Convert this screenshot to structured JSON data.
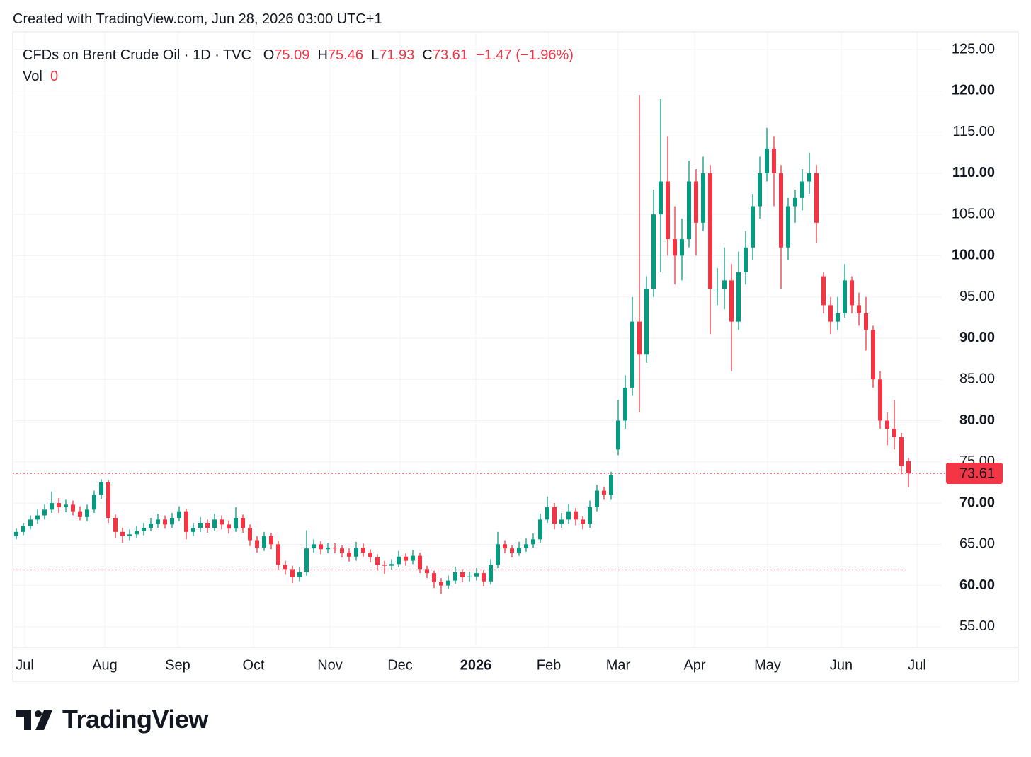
{
  "header": {
    "created": "Created with TradingView.com, Jun 28, 2026 03:00 UTC+1"
  },
  "footer": {
    "brand": "TradingView"
  },
  "chart_data": {
    "type": "candlestick",
    "legend": {
      "symbol": "CFDs on Brent Crude Oil · 1D · TVC",
      "open_label": "O",
      "high_label": "H",
      "low_label": "L",
      "close_label": "C",
      "change": "−1.47",
      "change_pct": "(−1.96%)",
      "volume_label": "Vol",
      "volume": 0
    },
    "up_color": "#089981",
    "down_color": "#f23645",
    "xlim": [
      0,
      131.2
    ],
    "xticks": [
      {
        "value": 1.7,
        "label": "Jul"
      },
      {
        "value": 13,
        "label": "Aug"
      },
      {
        "value": 23.3,
        "label": "Sep"
      },
      {
        "value": 34,
        "label": "Oct"
      },
      {
        "value": 44.8,
        "label": "Nov"
      },
      {
        "value": 54.7,
        "label": "Dec"
      },
      {
        "value": 65.4,
        "label": "2026"
      },
      {
        "value": 75.7,
        "label": "Feb"
      },
      {
        "value": 85.5,
        "label": "Mar"
      },
      {
        "value": 96.3,
        "label": "Apr"
      },
      {
        "value": 106.6,
        "label": "May"
      },
      {
        "value": 117,
        "label": "Jun"
      },
      {
        "value": 127.7,
        "label": "Jul"
      }
    ],
    "ylim": [
      52.5,
      127.15
    ],
    "yticks": [
      {
        "value": 55,
        "label": "55.00"
      },
      {
        "value": 60,
        "label": "60.00"
      },
      {
        "value": 65,
        "label": "65.00"
      },
      {
        "value": 70,
        "label": "70.00"
      },
      {
        "value": 75,
        "label": "75.00"
      },
      {
        "value": 80,
        "label": "80.00"
      },
      {
        "value": 85,
        "label": "85.00"
      },
      {
        "value": 90,
        "label": "90.00"
      },
      {
        "value": 95,
        "label": "95.00"
      },
      {
        "value": 100,
        "label": "100.00"
      },
      {
        "value": 105,
        "label": "105.00"
      },
      {
        "value": 110,
        "label": "110.00"
      },
      {
        "value": 115,
        "label": "115.00"
      },
      {
        "value": 120,
        "label": "120.00"
      },
      {
        "value": 125,
        "label": "125.00"
      }
    ],
    "grid": true,
    "reference_level": 61.9,
    "ohlc": [
      [
        66,
        66.9,
        65.6,
        66.5
      ],
      [
        66.5,
        67.6,
        66.1,
        67.2
      ],
      [
        67.2,
        68.5,
        66.8,
        68
      ],
      [
        68,
        69.2,
        67.5,
        68.5
      ],
      [
        68.5,
        69.8,
        68,
        69.2
      ],
      [
        69.2,
        71.4,
        68.8,
        70
      ],
      [
        70,
        70.6,
        68.8,
        69.5
      ],
      [
        69.5,
        70.4,
        68.9,
        69.8
      ],
      [
        69.8,
        70.3,
        68.5,
        69
      ],
      [
        69,
        69.6,
        67.9,
        68.3
      ],
      [
        68.3,
        69.8,
        67.8,
        69.2
      ],
      [
        69.2,
        71.5,
        68.8,
        71
      ],
      [
        71,
        72.9,
        70.5,
        72.5
      ],
      [
        72.5,
        72.8,
        67.6,
        68.2
      ],
      [
        68.2,
        68.6,
        65.8,
        66.5
      ],
      [
        66.5,
        67,
        65.2,
        66
      ],
      [
        66,
        66.8,
        65.5,
        66.2
      ],
      [
        66.2,
        67.2,
        65.8,
        66.6
      ],
      [
        66.6,
        67.6,
        66.1,
        67
      ],
      [
        67,
        68.2,
        66.6,
        67.5
      ],
      [
        67.5,
        68.7,
        67,
        68
      ],
      [
        68,
        68.5,
        66.9,
        67.4
      ],
      [
        67.4,
        68.8,
        67,
        68.2
      ],
      [
        68.2,
        69.6,
        67.8,
        69
      ],
      [
        69,
        69.3,
        65.6,
        66.5
      ],
      [
        66.5,
        67.6,
        66,
        67
      ],
      [
        67,
        68.3,
        66.5,
        67.6
      ],
      [
        67.6,
        68,
        66.4,
        67
      ],
      [
        67,
        68.7,
        66.6,
        68
      ],
      [
        68,
        68.5,
        66.8,
        67.4
      ],
      [
        67.4,
        67.9,
        66.3,
        66.9
      ],
      [
        66.9,
        69.5,
        66.5,
        68.2
      ],
      [
        68.2,
        68.6,
        66.4,
        67
      ],
      [
        67,
        67.4,
        64.8,
        65.5
      ],
      [
        65.5,
        66,
        64,
        64.6
      ],
      [
        64.6,
        66.5,
        64.2,
        66
      ],
      [
        66,
        66.4,
        64.4,
        65
      ],
      [
        65,
        65.4,
        61.9,
        62.5
      ],
      [
        62.5,
        63,
        61.3,
        62
      ],
      [
        62,
        62.4,
        60.3,
        61
      ],
      [
        61,
        62.2,
        60.5,
        61.6
      ],
      [
        61.6,
        66.7,
        61.2,
        64.5
      ],
      [
        64.5,
        65.6,
        64,
        65
      ],
      [
        65,
        65.4,
        63.8,
        64.4
      ],
      [
        64.4,
        65.2,
        63.9,
        64.6
      ],
      [
        64.6,
        65.2,
        63.9,
        64.5
      ],
      [
        64.5,
        64.9,
        63.4,
        64
      ],
      [
        64,
        64.5,
        62.9,
        63.5
      ],
      [
        63.5,
        65.3,
        63,
        64.6
      ],
      [
        64.6,
        65.1,
        63.5,
        64
      ],
      [
        64,
        64.4,
        62.8,
        63.4
      ],
      [
        63.4,
        63.8,
        61.8,
        62.5
      ],
      [
        62.5,
        63,
        61.4,
        62.4
      ],
      [
        62.4,
        63.2,
        61.9,
        62.6
      ],
      [
        62.6,
        64.2,
        62.2,
        63.5
      ],
      [
        63.5,
        63.9,
        62.4,
        63
      ],
      [
        63,
        64.3,
        62.6,
        63.6
      ],
      [
        63.6,
        64,
        61.5,
        62
      ],
      [
        62,
        62.4,
        60.9,
        61.5
      ],
      [
        61.5,
        61.8,
        59.7,
        60.4
      ],
      [
        60.4,
        60.9,
        59,
        60
      ],
      [
        60,
        61.2,
        59.6,
        60.6
      ],
      [
        60.6,
        62.3,
        60.2,
        61.6
      ],
      [
        61.6,
        62,
        60.4,
        61
      ],
      [
        61,
        61.7,
        60.5,
        61.1
      ],
      [
        61.1,
        62.1,
        60.6,
        61.5
      ],
      [
        61.5,
        61.9,
        59.9,
        60.5
      ],
      [
        60.5,
        63.2,
        60.1,
        62.5
      ],
      [
        62.5,
        66.5,
        62.1,
        65
      ],
      [
        65,
        65.5,
        63.9,
        64.5
      ],
      [
        64.5,
        64.9,
        63.4,
        64
      ],
      [
        64,
        65.3,
        63.6,
        64.6
      ],
      [
        64.6,
        65.7,
        64.1,
        65
      ],
      [
        65,
        66.3,
        64.6,
        65.6
      ],
      [
        65.6,
        68.7,
        65.2,
        68
      ],
      [
        68,
        70.8,
        67.6,
        69.5
      ],
      [
        69.5,
        70,
        66.8,
        67.5
      ],
      [
        67.5,
        68.8,
        67,
        68
      ],
      [
        68,
        69.9,
        67.5,
        69
      ],
      [
        69,
        69.4,
        67.3,
        68
      ],
      [
        68,
        68.4,
        66.8,
        67.5
      ],
      [
        67.5,
        70.3,
        67,
        69.5
      ],
      [
        69.5,
        72.2,
        69,
        71.5
      ],
      [
        71.5,
        72,
        70.4,
        71
      ],
      [
        71,
        73.8,
        70.4,
        73.4
      ],
      [
        76.5,
        82.5,
        75.8,
        80
      ],
      [
        80,
        85.5,
        79,
        84
      ],
      [
        84,
        95,
        83,
        92
      ],
      [
        92,
        119.5,
        81,
        88
      ],
      [
        88,
        97.5,
        87,
        96
      ],
      [
        96,
        108,
        95,
        105
      ],
      [
        105,
        119,
        98,
        109
      ],
      [
        109,
        114.5,
        100,
        102
      ],
      [
        102,
        106,
        96.5,
        100
      ],
      [
        100,
        104.5,
        97,
        102
      ],
      [
        102,
        111.5,
        101,
        109
      ],
      [
        109,
        110.5,
        100,
        104
      ],
      [
        104,
        112,
        103,
        110
      ],
      [
        110,
        111,
        90.5,
        96
      ],
      [
        96,
        98.5,
        94,
        96
      ],
      [
        96,
        101,
        93.5,
        97
      ],
      [
        97,
        99,
        86,
        92
      ],
      [
        92,
        100.5,
        91,
        98
      ],
      [
        98,
        103,
        96.5,
        101
      ],
      [
        101,
        107.5,
        99.5,
        106
      ],
      [
        106,
        112,
        104.5,
        110
      ],
      [
        110,
        115.5,
        109,
        113
      ],
      [
        113,
        114.5,
        106,
        110
      ],
      [
        110,
        111,
        96,
        101
      ],
      [
        101,
        107,
        99.5,
        106
      ],
      [
        106,
        108,
        104,
        107
      ],
      [
        107,
        110.5,
        105.5,
        109
      ],
      [
        109,
        112.5,
        107.5,
        110
      ],
      [
        110,
        111,
        101.5,
        104
      ],
      [
        97.5,
        98,
        93,
        94
      ],
      [
        94,
        95,
        90.5,
        92
      ],
      [
        92,
        95,
        91,
        93
      ],
      [
        93,
        99,
        92.5,
        97
      ],
      [
        97,
        97.5,
        93,
        94
      ],
      [
        94,
        95.5,
        91.5,
        93
      ],
      [
        93,
        95,
        88.5,
        91
      ],
      [
        91,
        91.5,
        84,
        85
      ],
      [
        85,
        86,
        79,
        80
      ],
      [
        80,
        81,
        77,
        79
      ],
      [
        79,
        82.5,
        76.5,
        78
      ],
      [
        78,
        78.5,
        73.5,
        74.5
      ],
      [
        75.09,
        75.46,
        71.93,
        73.61
      ]
    ]
  }
}
